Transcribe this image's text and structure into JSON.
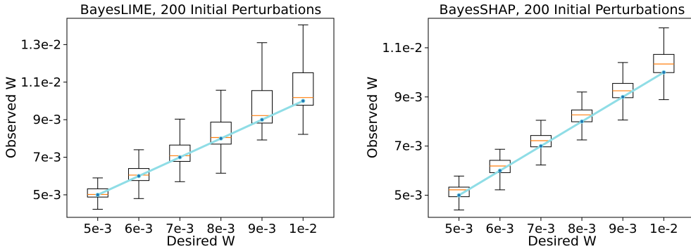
{
  "charts": [
    {
      "title": "BayesLIME, 200 Initial Perturbations",
      "xlabel": "Desired W",
      "ylabel": "Observed W",
      "chart_data": {
        "type": "box",
        "categories": [
          "5e-3",
          "6e-3",
          "7e-3",
          "8e-3",
          "9e-3",
          "1e-2"
        ],
        "x": [
          0.005,
          0.006,
          0.007,
          0.008,
          0.009,
          0.01
        ],
        "ylim": [
          0.0038,
          0.0144
        ],
        "yticks": [
          0.005,
          0.007,
          0.009,
          0.011,
          0.013
        ],
        "ytick_labels": [
          "5e-3",
          "7e-3",
          "9e-3",
          "1.1e-2",
          "1.3e-2"
        ],
        "boxes": [
          {
            "whislo": 0.00423,
            "q1": 0.00488,
            "med": 0.00502,
            "q3": 0.00532,
            "whishi": 0.0059
          },
          {
            "whislo": 0.0048,
            "q1": 0.00576,
            "med": 0.00605,
            "q3": 0.0064,
            "whishi": 0.0074
          },
          {
            "whislo": 0.0057,
            "q1": 0.00678,
            "med": 0.00708,
            "q3": 0.00765,
            "whishi": 0.00903
          },
          {
            "whislo": 0.00615,
            "q1": 0.0077,
            "med": 0.00805,
            "q3": 0.00887,
            "whishi": 0.01057
          },
          {
            "whislo": 0.00792,
            "q1": 0.00882,
            "med": 0.00922,
            "q3": 0.01055,
            "whishi": 0.0131
          },
          {
            "whislo": 0.00822,
            "q1": 0.00977,
            "med": 0.01018,
            "q3": 0.0115,
            "whishi": 0.01405
          }
        ],
        "reference_line": {
          "x": [
            0.005,
            0.006,
            0.007,
            0.008,
            0.009,
            0.01
          ],
          "y": [
            0.005,
            0.006,
            0.007,
            0.008,
            0.009,
            0.01
          ]
        },
        "colors": {
          "box": "#000000",
          "median": "#ff7f0e",
          "reference_line": "#8fdde6",
          "reference_point": "#1f77b4"
        },
        "grid": false
      }
    },
    {
      "title": "BayesSHAP, 200 Initial Perturbations",
      "xlabel": "Desired W",
      "ylabel": "Observed W",
      "chart_data": {
        "type": "box",
        "categories": [
          "5e-3",
          "6e-3",
          "7e-3",
          "8e-3",
          "9e-3",
          "1e-2"
        ],
        "x": [
          0.005,
          0.006,
          0.007,
          0.008,
          0.009,
          0.01
        ],
        "ylim": [
          0.0041,
          0.0122
        ],
        "yticks": [
          0.005,
          0.007,
          0.009,
          0.011
        ],
        "ytick_labels": [
          "5e-3",
          "7e-3",
          "9e-3",
          "1.1e-2"
        ],
        "boxes": [
          {
            "whislo": 0.0044,
            "q1": 0.00494,
            "med": 0.00522,
            "q3": 0.00533,
            "whishi": 0.00578
          },
          {
            "whislo": 0.00522,
            "q1": 0.00592,
            "med": 0.00619,
            "q3": 0.00642,
            "whishi": 0.00687
          },
          {
            "whislo": 0.00623,
            "q1": 0.00697,
            "med": 0.00722,
            "q3": 0.00743,
            "whishi": 0.00805
          },
          {
            "whislo": 0.00725,
            "q1": 0.00799,
            "med": 0.00827,
            "q3": 0.00847,
            "whishi": 0.0092
          },
          {
            "whislo": 0.00806,
            "q1": 0.00897,
            "med": 0.00925,
            "q3": 0.00955,
            "whishi": 0.0104
          },
          {
            "whislo": 0.00889,
            "q1": 0.00999,
            "med": 0.01034,
            "q3": 0.01073,
            "whishi": 0.01181
          }
        ],
        "reference_line": {
          "x": [
            0.005,
            0.006,
            0.007,
            0.008,
            0.009,
            0.01
          ],
          "y": [
            0.005,
            0.006,
            0.007,
            0.008,
            0.009,
            0.01
          ]
        },
        "colors": {
          "box": "#000000",
          "median": "#ff7f0e",
          "reference_line": "#8fdde6",
          "reference_point": "#1f77b4"
        },
        "grid": false
      }
    }
  ]
}
